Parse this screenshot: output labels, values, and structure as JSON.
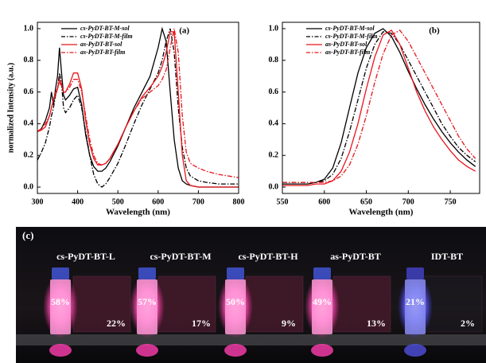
{
  "chart_data": [
    {
      "type": "line",
      "title": "(a)",
      "xlabel": "Wavelength (nm)",
      "ylabel": "normalized Intensity (a.u.)",
      "xlim": [
        300,
        800
      ],
      "xticks": [
        300,
        400,
        500,
        600,
        700,
        800
      ],
      "ylim": [
        -0.04,
        1.04
      ],
      "yticks": [
        {
          "value": 0,
          "label": "0.0"
        },
        0.2,
        0.4,
        0.6,
        0.8,
        {
          "value": 1,
          "label": "1.0"
        }
      ],
      "legend": "upper left",
      "x": [
        300,
        310,
        320,
        330,
        335,
        340,
        345,
        350,
        355,
        360,
        365,
        370,
        380,
        390,
        400,
        410,
        420,
        430,
        440,
        450,
        460,
        470,
        480,
        500,
        520,
        540,
        560,
        580,
        600,
        610,
        620,
        630,
        640,
        650,
        660,
        670,
        680,
        700,
        720,
        750,
        800
      ],
      "series": [
        {
          "name": "cs-PyDT-BT-M-sol",
          "color": "#000000",
          "style": "solid",
          "values": [
            0.35,
            0.37,
            0.42,
            0.5,
            0.6,
            0.52,
            0.62,
            0.7,
            0.88,
            0.72,
            0.58,
            0.55,
            0.58,
            0.62,
            0.63,
            0.52,
            0.33,
            0.2,
            0.13,
            0.1,
            0.1,
            0.12,
            0.16,
            0.26,
            0.38,
            0.5,
            0.6,
            0.7,
            0.88,
            1.0,
            0.92,
            0.6,
            0.3,
            0.12,
            0.04,
            0.02,
            0.01,
            0,
            0,
            0,
            0
          ]
        },
        {
          "name": "cs-PyDT-BT-M-film",
          "color": "#000000",
          "style": "dashdot",
          "values": [
            0.17,
            0.22,
            0.28,
            0.38,
            0.45,
            0.5,
            0.58,
            0.62,
            0.72,
            0.65,
            0.5,
            0.47,
            0.5,
            0.55,
            0.58,
            0.5,
            0.35,
            0.2,
            0.08,
            0.02,
            0,
            0.02,
            0.06,
            0.15,
            0.27,
            0.4,
            0.52,
            0.62,
            0.72,
            0.8,
            0.92,
            1.0,
            0.85,
            0.5,
            0.25,
            0.12,
            0.07,
            0.04,
            0.03,
            0.02,
            0.02
          ]
        },
        {
          "name": "as-PyDT-BT-sol",
          "color": "#e8141b",
          "style": "solid",
          "values": [
            0.35,
            0.36,
            0.38,
            0.45,
            0.5,
            0.55,
            0.6,
            0.62,
            0.68,
            0.65,
            0.6,
            0.6,
            0.65,
            0.72,
            0.72,
            0.62,
            0.42,
            0.27,
            0.18,
            0.14,
            0.14,
            0.15,
            0.18,
            0.27,
            0.38,
            0.48,
            0.57,
            0.63,
            0.7,
            0.76,
            0.85,
            0.98,
            0.98,
            0.6,
            0.2,
            0.04,
            0.01,
            0,
            0,
            0,
            0
          ]
        },
        {
          "name": "as-PyDT-BT-film",
          "color": "#e8141b",
          "style": "dashdot",
          "values": [
            0.35,
            0.37,
            0.4,
            0.45,
            0.5,
            0.55,
            0.58,
            0.62,
            0.66,
            0.64,
            0.6,
            0.6,
            0.63,
            0.68,
            0.68,
            0.6,
            0.45,
            0.3,
            0.2,
            0.15,
            0.14,
            0.15,
            0.18,
            0.27,
            0.38,
            0.48,
            0.56,
            0.6,
            0.64,
            0.68,
            0.74,
            0.88,
            1.0,
            0.85,
            0.45,
            0.22,
            0.15,
            0.12,
            0.1,
            0.08,
            0.06
          ]
        }
      ]
    },
    {
      "type": "line",
      "title": "(b)",
      "xlabel": "Wavelength (nm)",
      "xlim": [
        550,
        785
      ],
      "xticks": [
        550,
        600,
        650,
        700,
        750
      ],
      "ylim": [
        -0.04,
        1.04
      ],
      "yticks": [
        {
          "value": 0,
          "label": "0.0"
        },
        0.2,
        0.4,
        0.6,
        0.8,
        {
          "value": 1,
          "label": "1.0"
        }
      ],
      "legend": "upper left",
      "x": [
        550,
        560,
        570,
        580,
        590,
        600,
        610,
        620,
        630,
        640,
        650,
        660,
        670,
        680,
        690,
        700,
        710,
        720,
        730,
        740,
        750,
        760,
        770,
        780
      ],
      "series": [
        {
          "name": "cs-PyDT-BT-M-sol",
          "color": "#000000",
          "style": "solid",
          "values": [
            0.02,
            0.02,
            0.02,
            0.02,
            0.03,
            0.05,
            0.12,
            0.28,
            0.5,
            0.72,
            0.88,
            0.97,
            1.0,
            0.95,
            0.85,
            0.73,
            0.62,
            0.52,
            0.43,
            0.35,
            0.28,
            0.22,
            0.17,
            0.13
          ]
        },
        {
          "name": "cs-PyDT-BT-M-film",
          "color": "#000000",
          "style": "dashdot",
          "values": [
            0.03,
            0.03,
            0.03,
            0.03,
            0.03,
            0.04,
            0.08,
            0.18,
            0.35,
            0.55,
            0.75,
            0.9,
            0.98,
            0.97,
            0.9,
            0.8,
            0.7,
            0.6,
            0.5,
            0.4,
            0.32,
            0.25,
            0.2,
            0.16
          ]
        },
        {
          "name": "as-PyDT-BT-sol",
          "color": "#e8141b",
          "style": "solid",
          "values": [
            0.01,
            0.01,
            0.01,
            0.01,
            0.02,
            0.02,
            0.04,
            0.1,
            0.22,
            0.4,
            0.62,
            0.82,
            0.96,
            0.99,
            0.9,
            0.75,
            0.6,
            0.48,
            0.38,
            0.3,
            0.23,
            0.17,
            0.13,
            0.1
          ]
        },
        {
          "name": "as-PyDT-BT-film",
          "color": "#e8141b",
          "style": "dashdot",
          "values": [
            0.03,
            0.03,
            0.03,
            0.03,
            0.03,
            0.03,
            0.04,
            0.07,
            0.14,
            0.27,
            0.45,
            0.66,
            0.84,
            0.96,
            0.99,
            0.92,
            0.82,
            0.72,
            0.62,
            0.52,
            0.42,
            0.32,
            0.24,
            0.18
          ]
        }
      ]
    }
  ],
  "photo": {
    "label": "(c)",
    "samples": [
      {
        "name": "cs-PyDT-BT-L",
        "solution": "58%",
        "film": "22%"
      },
      {
        "name": "cs-PyDT-BT-M",
        "solution": "57%",
        "film": "17%"
      },
      {
        "name": "cs-PyDT-BT-H",
        "solution": "50%",
        "film": "9%"
      },
      {
        "name": "as-PyDT-BT",
        "solution": "49%",
        "film": "13%"
      },
      {
        "name": "IDT-BT",
        "solution": "21%",
        "film": "2%"
      }
    ]
  }
}
